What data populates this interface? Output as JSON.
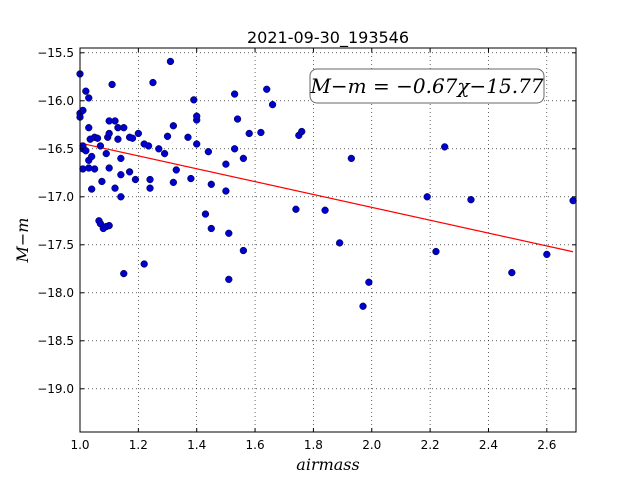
{
  "chart_data": {
    "type": "scatter",
    "title": "2021-09-30_193546",
    "xlabel": "airmass",
    "ylabel": "M−m",
    "xlim": [
      1.0,
      2.7
    ],
    "ylim": [
      -19.45,
      -15.45
    ],
    "y_inverted": true,
    "grid": true,
    "x_ticks": [
      "1.0",
      "1.2",
      "1.4",
      "1.6",
      "1.8",
      "2.0",
      "2.2",
      "2.4",
      "2.6"
    ],
    "x_tick_values": [
      1.0,
      1.2,
      1.4,
      1.6,
      1.8,
      2.0,
      2.2,
      2.4,
      2.6
    ],
    "y_ticks": [
      "−15.5",
      "−16.0",
      "−16.5",
      "−17.0",
      "−17.5",
      "−18.0",
      "−18.5",
      "−19.0"
    ],
    "y_tick_values": [
      -15.5,
      -16.0,
      -16.5,
      -17.0,
      -17.5,
      -18.0,
      -18.5,
      -19.0
    ],
    "annotation": "M−m = −0.67χ−15.77",
    "annotation_position": "top-right",
    "fit_line": {
      "slope": -0.67,
      "intercept": -15.77,
      "x_range": [
        1.0,
        2.69
      ],
      "color": "#ff0000"
    },
    "marker_color": "#0000cc",
    "points": [
      [
        1.0,
        -15.72
      ],
      [
        1.0,
        -16.13
      ],
      [
        1.0,
        -16.17
      ],
      [
        1.01,
        -16.1
      ],
      [
        1.01,
        -16.47
      ],
      [
        1.01,
        -16.5
      ],
      [
        1.01,
        -16.71
      ],
      [
        1.02,
        -15.9
      ],
      [
        1.02,
        -16.52
      ],
      [
        1.03,
        -15.97
      ],
      [
        1.03,
        -16.28
      ],
      [
        1.03,
        -16.62
      ],
      [
        1.03,
        -16.7
      ],
      [
        1.035,
        -16.4
      ],
      [
        1.04,
        -16.58
      ],
      [
        1.04,
        -16.92
      ],
      [
        1.05,
        -16.38
      ],
      [
        1.05,
        -16.71
      ],
      [
        1.06,
        -16.39
      ],
      [
        1.065,
        -17.25
      ],
      [
        1.07,
        -16.47
      ],
      [
        1.07,
        -17.28
      ],
      [
        1.075,
        -16.84
      ],
      [
        1.08,
        -17.33
      ],
      [
        1.09,
        -16.55
      ],
      [
        1.09,
        -17.31
      ],
      [
        1.095,
        -16.38
      ],
      [
        1.1,
        -16.7
      ],
      [
        1.1,
        -17.3
      ],
      [
        1.1,
        -16.21
      ],
      [
        1.1,
        -16.34
      ],
      [
        1.11,
        -15.83
      ],
      [
        1.12,
        -16.21
      ],
      [
        1.12,
        -16.91
      ],
      [
        1.13,
        -16.28
      ],
      [
        1.13,
        -16.4
      ],
      [
        1.14,
        -16.6
      ],
      [
        1.14,
        -16.77
      ],
      [
        1.14,
        -17.0
      ],
      [
        1.15,
        -16.28
      ],
      [
        1.15,
        -17.8
      ],
      [
        1.17,
        -16.38
      ],
      [
        1.17,
        -16.74
      ],
      [
        1.18,
        -16.39
      ],
      [
        1.19,
        -16.82
      ],
      [
        1.2,
        -16.34
      ],
      [
        1.22,
        -16.45
      ],
      [
        1.22,
        -17.7
      ],
      [
        1.235,
        -16.47
      ],
      [
        1.24,
        -16.82
      ],
      [
        1.24,
        -16.91
      ],
      [
        1.25,
        -15.81
      ],
      [
        1.27,
        -16.5
      ],
      [
        1.29,
        -16.55
      ],
      [
        1.3,
        -16.37
      ],
      [
        1.31,
        -15.59
      ],
      [
        1.32,
        -16.26
      ],
      [
        1.32,
        -16.85
      ],
      [
        1.33,
        -16.72
      ],
      [
        1.37,
        -16.38
      ],
      [
        1.38,
        -16.81
      ],
      [
        1.39,
        -15.99
      ],
      [
        1.4,
        -16.2
      ],
      [
        1.4,
        -16.16
      ],
      [
        1.4,
        -16.45
      ],
      [
        1.43,
        -17.18
      ],
      [
        1.44,
        -16.53
      ],
      [
        1.45,
        -16.87
      ],
      [
        1.45,
        -17.33
      ],
      [
        1.5,
        -16.94
      ],
      [
        1.5,
        -16.66
      ],
      [
        1.51,
        -17.38
      ],
      [
        1.51,
        -17.86
      ],
      [
        1.53,
        -15.93
      ],
      [
        1.53,
        -16.5
      ],
      [
        1.54,
        -16.19
      ],
      [
        1.56,
        -16.6
      ],
      [
        1.56,
        -17.56
      ],
      [
        1.58,
        -16.34
      ],
      [
        1.62,
        -16.33
      ],
      [
        1.64,
        -15.88
      ],
      [
        1.66,
        -16.04
      ],
      [
        1.75,
        -16.36
      ],
      [
        1.76,
        -16.32
      ],
      [
        1.74,
        -17.13
      ],
      [
        1.84,
        -17.14
      ],
      [
        1.89,
        -17.48
      ],
      [
        1.93,
        -16.6
      ],
      [
        1.97,
        -18.14
      ],
      [
        1.99,
        -17.89
      ],
      [
        2.19,
        -17.0
      ],
      [
        2.22,
        -17.57
      ],
      [
        2.25,
        -16.48
      ],
      [
        2.34,
        -17.03
      ],
      [
        2.48,
        -17.79
      ],
      [
        2.6,
        -17.6
      ],
      [
        2.69,
        -17.04
      ]
    ]
  }
}
